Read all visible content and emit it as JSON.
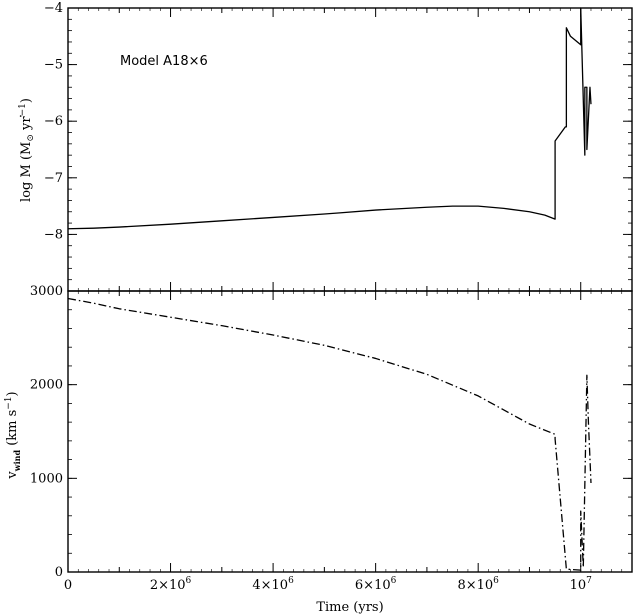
{
  "chart_data": [
    {
      "type": "line",
      "panel": "top",
      "annotation": "Model A18×6",
      "ylabel_parts": {
        "main": "log ",
        "mdot": "M",
        "unit_open": " (M",
        "sun": "⊙",
        "unit_mid": " yr",
        "exp": "−1",
        "unit_close": ")"
      },
      "ylim": [
        -9,
        -4
      ],
      "xlim": [
        0,
        11000000
      ],
      "y_ticks": [
        -8,
        -7,
        -6,
        -5,
        -4
      ],
      "y_tick_labels": [
        "−8",
        "−7",
        "−6",
        "−5",
        "−4"
      ],
      "series": [
        {
          "style": "solid",
          "x": [
            0,
            500000,
            1000000,
            2000000,
            3000000,
            4000000,
            5000000,
            5300000,
            6000000,
            7000000,
            7500000,
            8000000,
            8500000,
            9000000,
            9300000,
            9500000,
            9500000,
            9700000,
            9720000,
            9720000,
            9800000,
            10000000,
            10000000,
            10080000,
            10080000,
            10120000,
            10120000,
            10180000,
            10200000
          ],
          "y": [
            -7.9,
            -7.89,
            -7.87,
            -7.82,
            -7.76,
            -7.7,
            -7.64,
            -7.62,
            -7.57,
            -7.52,
            -7.5,
            -7.5,
            -7.54,
            -7.6,
            -7.66,
            -7.73,
            -6.35,
            -6.1,
            -6.1,
            -4.35,
            -4.5,
            -4.65,
            -4.0,
            -6.6,
            -5.4,
            -5.4,
            -6.5,
            -5.4,
            -5.7
          ]
        }
      ]
    },
    {
      "type": "line",
      "panel": "bottom",
      "ylabel_parts": {
        "v": "v",
        "sub": "wind",
        "unit_open": " (km s",
        "exp": "−1",
        "unit_close": ")"
      },
      "xlabel": "Time (yrs)",
      "ylim": [
        0,
        3000
      ],
      "xlim": [
        0,
        11000000
      ],
      "y_ticks": [
        0,
        1000,
        2000,
        3000
      ],
      "y_tick_labels": [
        "0",
        "1000",
        "2000",
        "3000"
      ],
      "x_ticks": [
        0,
        2000000,
        4000000,
        6000000,
        8000000,
        10000000
      ],
      "x_tick_labels": [
        {
          "base": "0",
          "exp": ""
        },
        {
          "base": "2×10",
          "exp": "6"
        },
        {
          "base": "4×10",
          "exp": "6"
        },
        {
          "base": "6×10",
          "exp": "6"
        },
        {
          "base": "8×10",
          "exp": "6"
        },
        {
          "base": "10",
          "exp": "7"
        }
      ],
      "series": [
        {
          "style": "dash-dot",
          "x": [
            0,
            500000,
            1000000,
            2000000,
            3000000,
            4000000,
            5000000,
            6000000,
            7000000,
            8000000,
            9000000,
            9500000,
            9500000,
            9720000,
            9730000,
            10000000,
            10000000,
            10050000,
            10120000,
            10150000,
            10200000
          ],
          "y": [
            2920,
            2870,
            2810,
            2720,
            2630,
            2530,
            2420,
            2280,
            2110,
            1880,
            1580,
            1470,
            1420,
            30,
            30,
            20,
            650,
            50,
            2100,
            1600,
            950
          ]
        }
      ]
    }
  ]
}
